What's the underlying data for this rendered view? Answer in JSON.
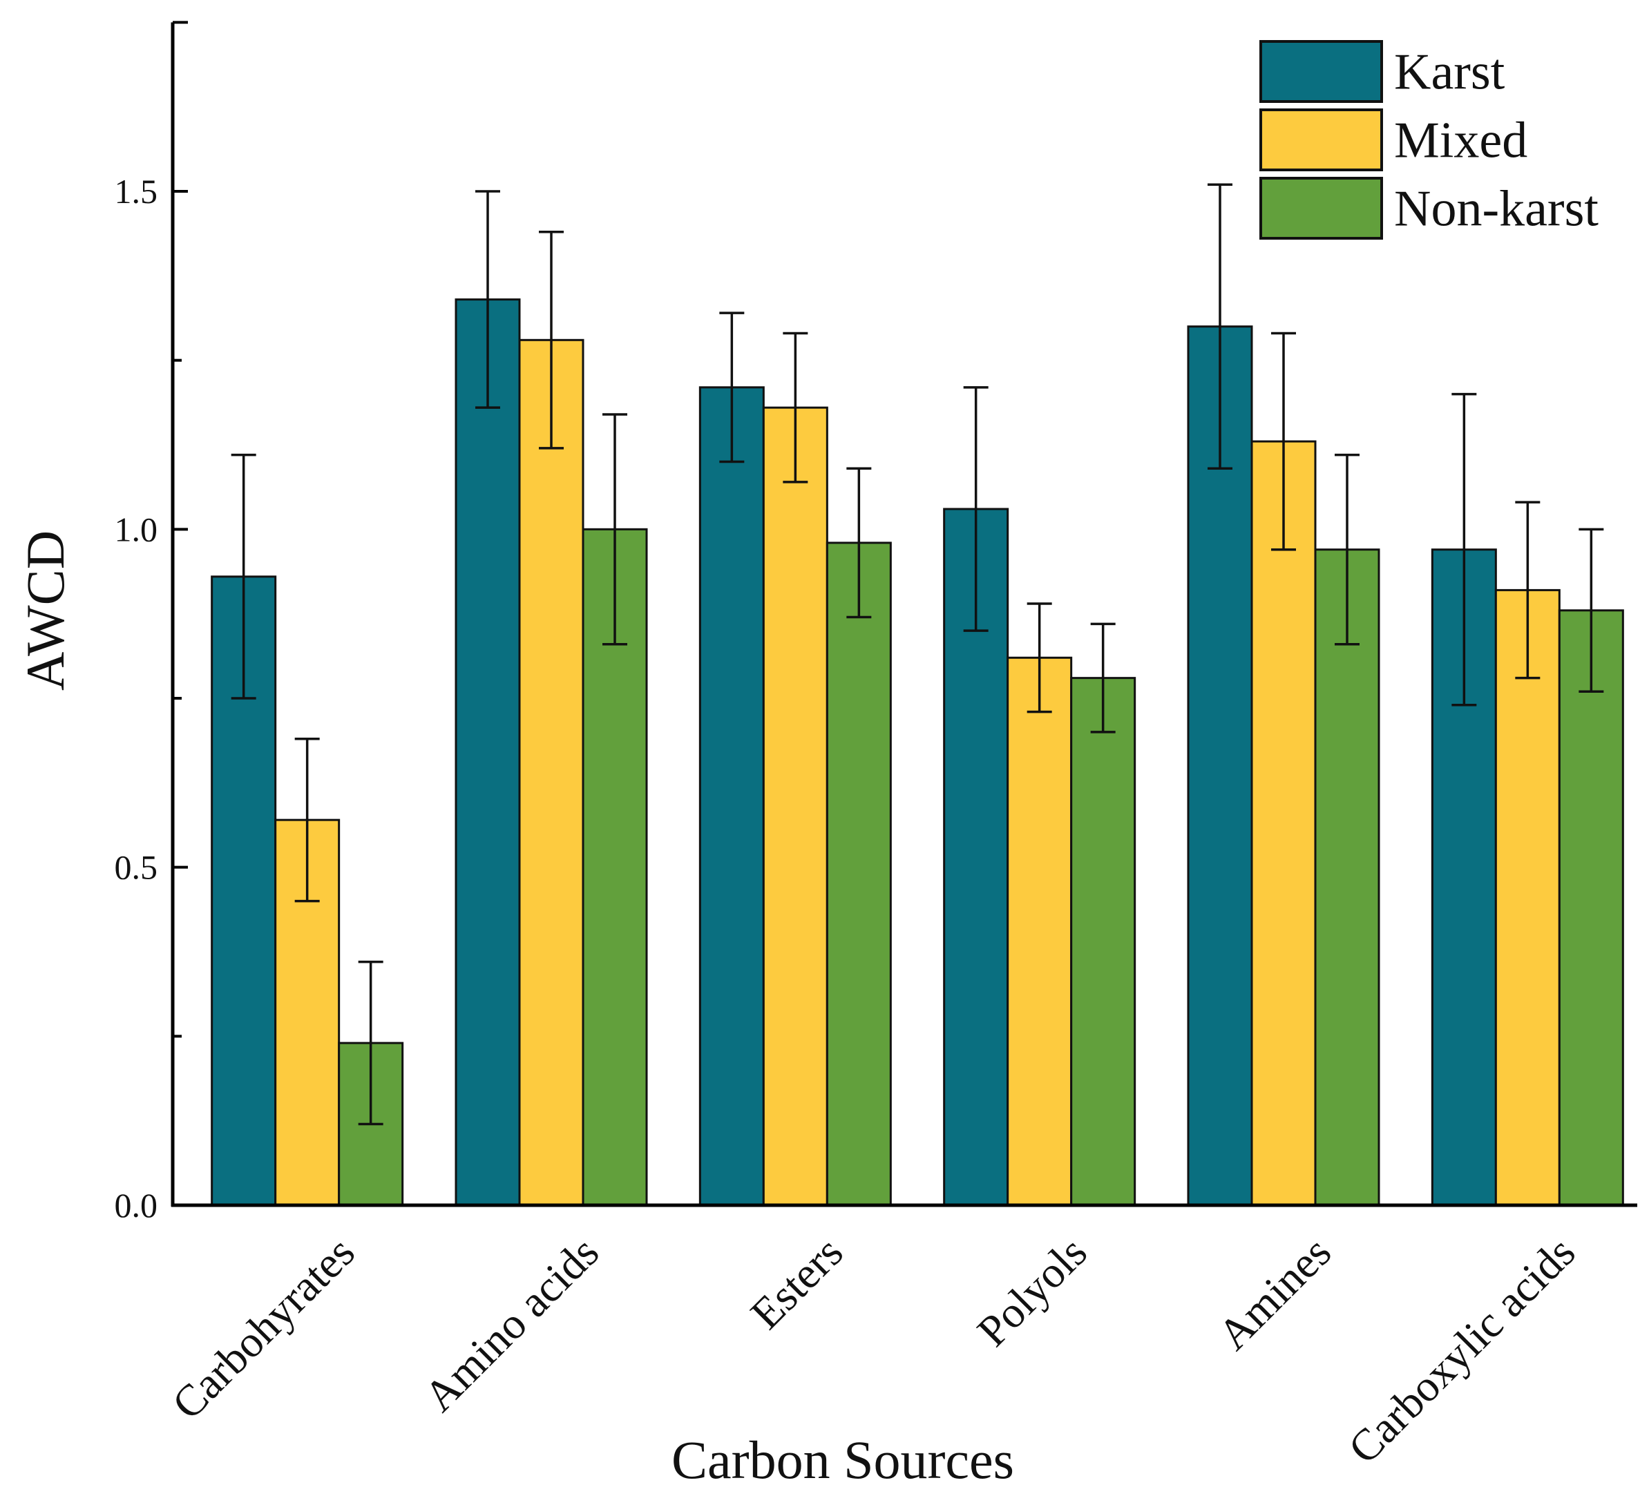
{
  "chart_data": {
    "type": "bar",
    "title": "",
    "xlabel": "Carbon Sources",
    "ylabel": "AWCD",
    "ylim": [
      0,
      1.75
    ],
    "yticks": [
      0.0,
      0.5,
      1.0,
      1.5
    ],
    "ytick_labels": [
      "0.0",
      "0.5",
      "1.0",
      "1.5"
    ],
    "categories": [
      "Carbohyrates",
      "Amino acids",
      "Esters",
      "Polyols",
      "Amines",
      "Carboxylic acids"
    ],
    "series": [
      {
        "name": "Karst",
        "color": "#0a6f80",
        "values": [
          0.93,
          1.34,
          1.21,
          1.03,
          1.3,
          0.97
        ],
        "errors": [
          0.18,
          0.16,
          0.11,
          0.18,
          0.21,
          0.23
        ]
      },
      {
        "name": "Mixed",
        "color": "#fdcb3f",
        "values": [
          0.57,
          1.28,
          1.18,
          0.81,
          1.13,
          0.91
        ],
        "errors": [
          0.12,
          0.16,
          0.11,
          0.08,
          0.16,
          0.13
        ]
      },
      {
        "name": "Non-karst",
        "color": "#62a03c",
        "values": [
          0.24,
          1.0,
          0.98,
          0.78,
          0.97,
          0.88
        ],
        "errors": [
          0.12,
          0.17,
          0.11,
          0.08,
          0.14,
          0.12
        ]
      }
    ],
    "legend": {
      "position": "top-right",
      "entries": [
        "Karst",
        "Mixed",
        "Non-karst"
      ]
    },
    "grid": false
  }
}
